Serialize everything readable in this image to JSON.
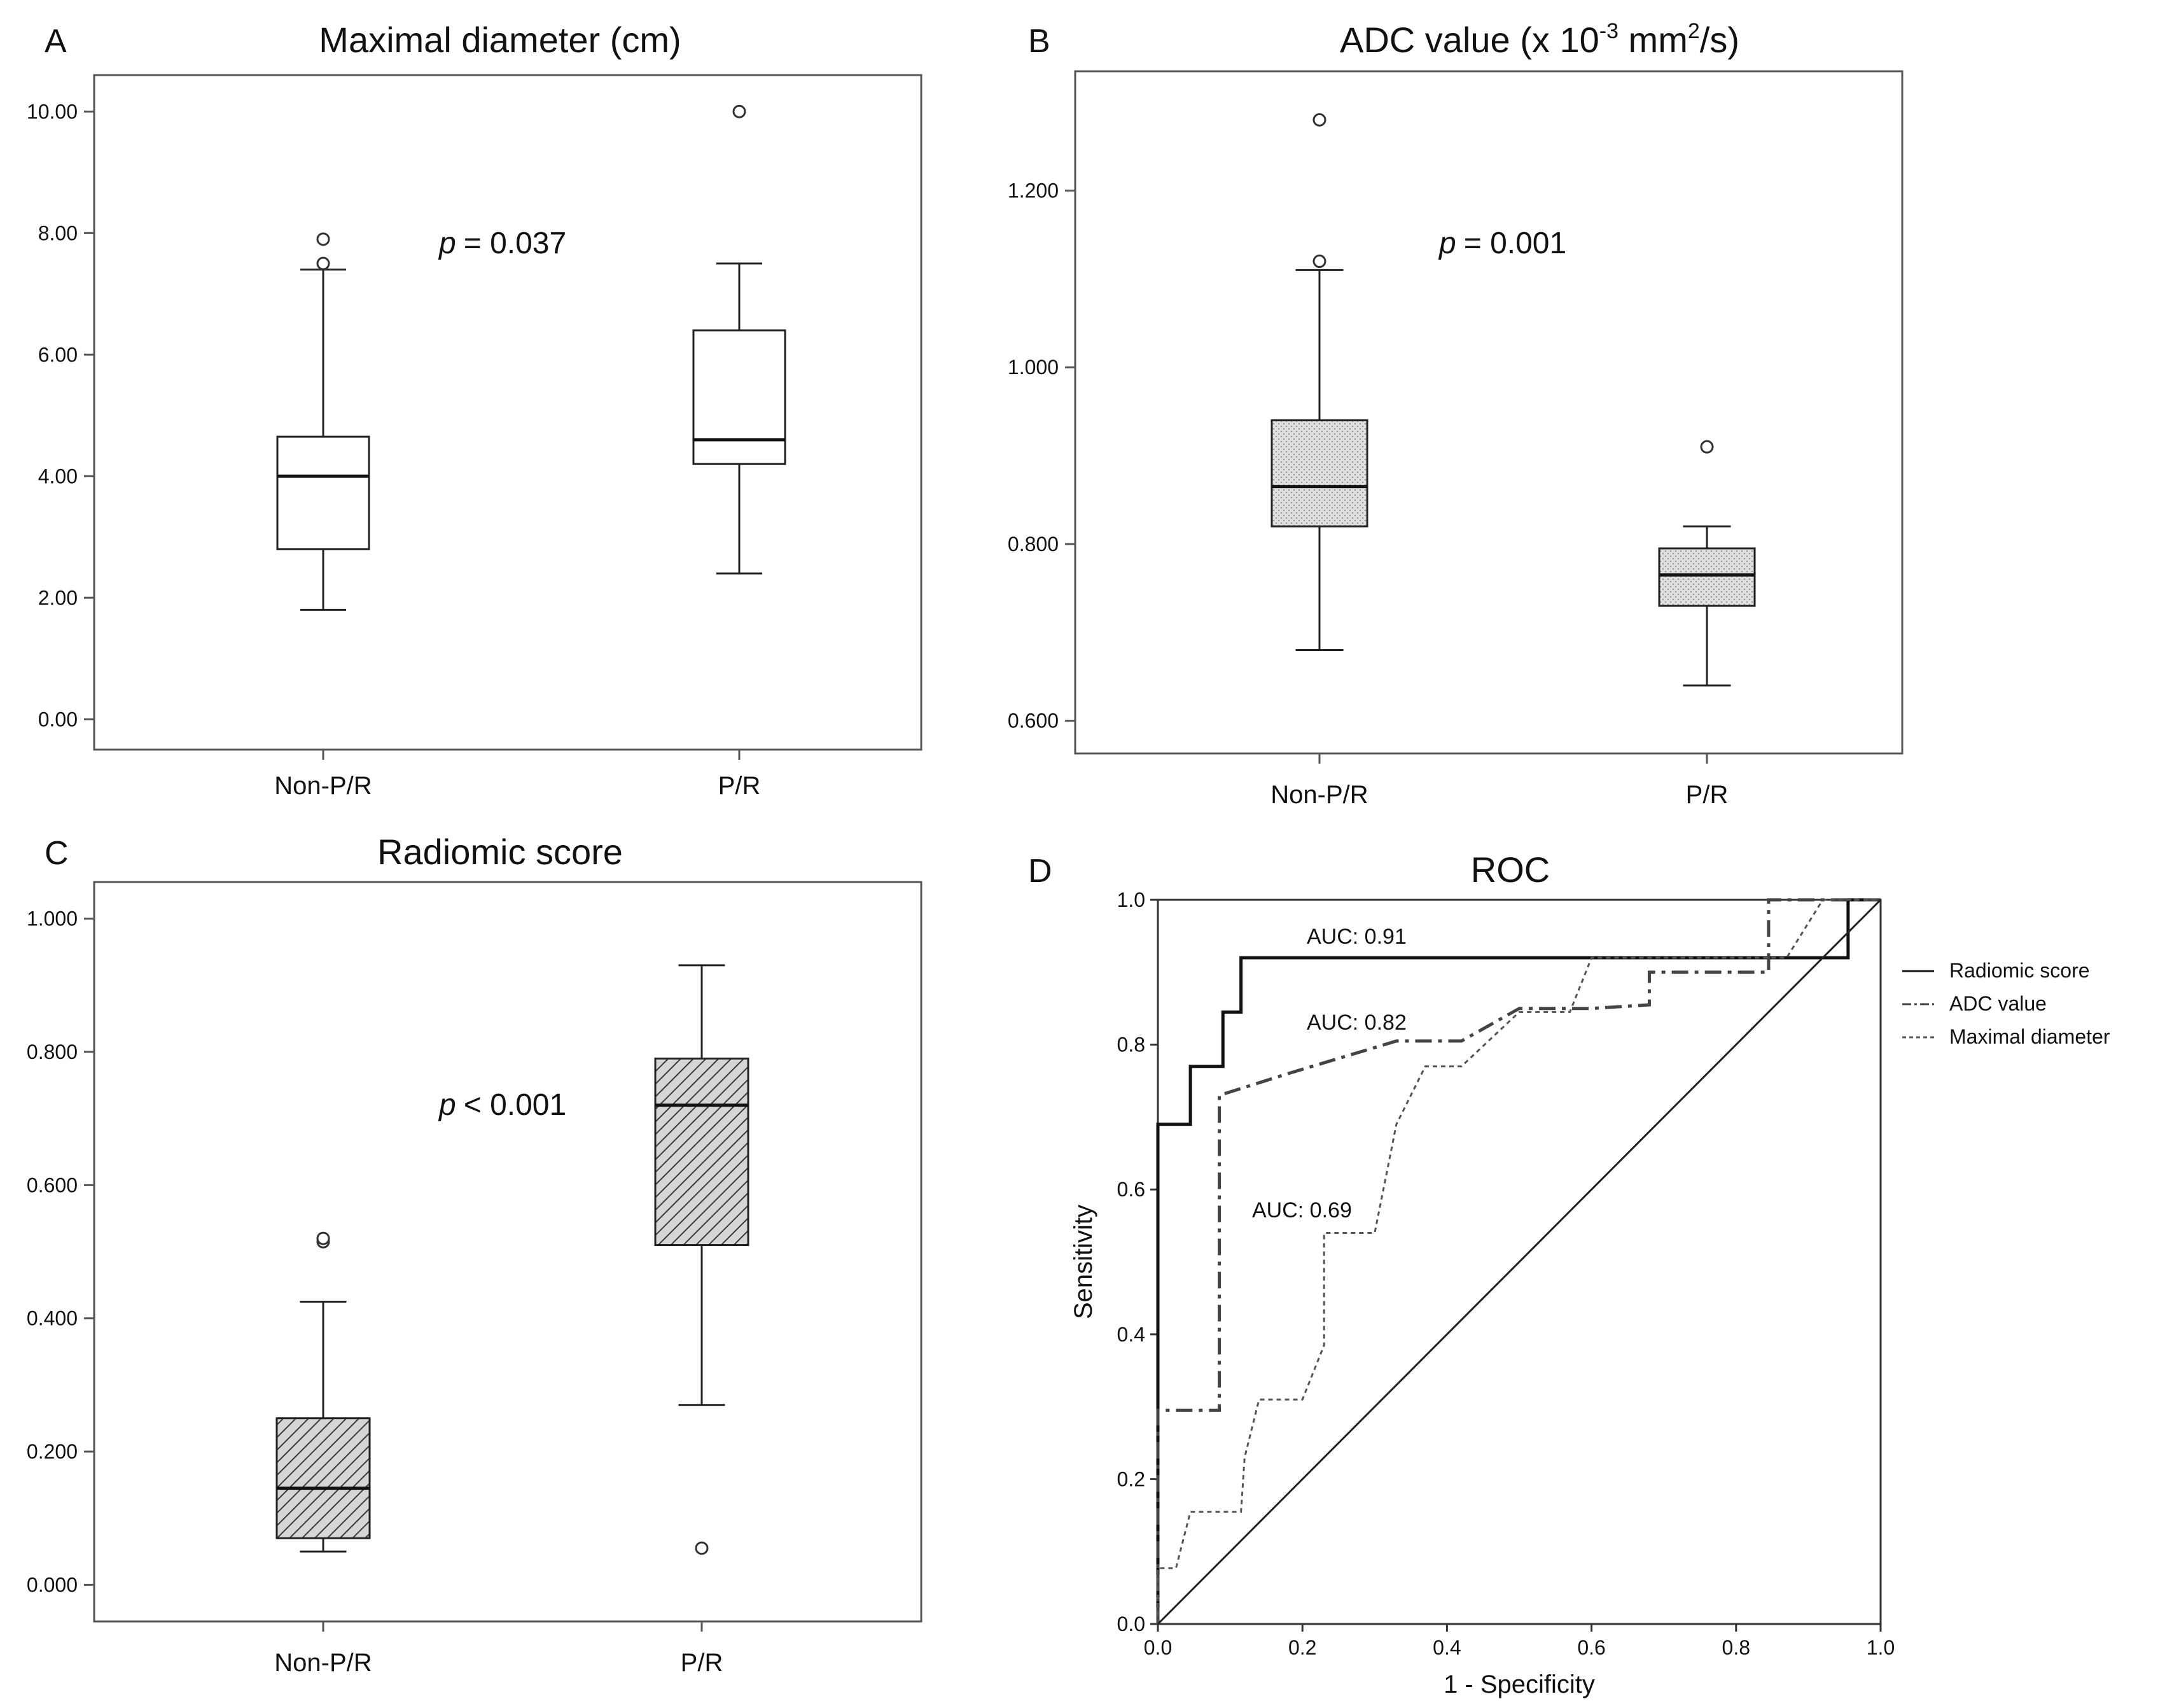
{
  "chart_data": [
    {
      "type": "box",
      "panel": "A",
      "title": "Maximal diameter (cm)",
      "categories": [
        "Non-P/R",
        "P/R"
      ],
      "ylim": [
        -0.5,
        10.6
      ],
      "yticks": [
        0,
        2,
        4,
        6,
        8,
        10
      ],
      "tick_labels": [
        "0.00",
        "2.00",
        "4.00",
        "6.00",
        "8.00",
        "10.00"
      ],
      "boxes": [
        {
          "category": "Non-P/R",
          "min": 1.8,
          "q1": 2.8,
          "median": 4.0,
          "q3": 4.65,
          "max": 7.4,
          "outliers": [
            7.5,
            7.9
          ]
        },
        {
          "category": "P/R",
          "min": 2.4,
          "q1": 4.2,
          "median": 4.6,
          "q3": 6.4,
          "max": 7.5,
          "outliers": [
            10.0
          ]
        }
      ],
      "fill": "none",
      "p_label": "p",
      "p_value": "= 0.037"
    },
    {
      "type": "box",
      "panel": "B",
      "title_main": "ADC value (x 10",
      "title_sup1": "-3",
      "title_mid": " mm",
      "title_sup2": "2",
      "title_end": "/s)",
      "categories": [
        "Non-P/R",
        "P/R"
      ],
      "ylim": [
        0.563,
        1.335
      ],
      "yticks": [
        0.6,
        0.8,
        1.0,
        1.2
      ],
      "tick_labels": [
        "0.600",
        "0.800",
        "1.000",
        "1.200"
      ],
      "boxes": [
        {
          "category": "Non-P/R",
          "min": 0.68,
          "q1": 0.82,
          "median": 0.865,
          "q3": 0.94,
          "max": 1.11,
          "outliers": [
            1.12,
            1.28
          ]
        },
        {
          "category": "P/R",
          "min": 0.64,
          "q1": 0.73,
          "median": 0.765,
          "q3": 0.795,
          "max": 0.82,
          "outliers": [
            0.91
          ]
        }
      ],
      "fill": "dotted-gray",
      "p_label": "p",
      "p_value": "= 0.001"
    },
    {
      "type": "box",
      "panel": "C",
      "title": "Radiomic  score",
      "categories": [
        "Non-P/R",
        "P/R"
      ],
      "ylim": [
        -0.055,
        1.055
      ],
      "yticks": [
        0,
        0.2,
        0.4,
        0.6,
        0.8,
        1.0
      ],
      "tick_labels": [
        "0.000",
        "0.200",
        "0.400",
        "0.600",
        "0.800",
        "1.000"
      ],
      "boxes": [
        {
          "category": "Non-P/R",
          "min": 0.05,
          "q1": 0.07,
          "median": 0.145,
          "q3": 0.25,
          "max": 0.425,
          "outliers": [
            0.515,
            0.52
          ]
        },
        {
          "category": "P/R",
          "min": 0.27,
          "q1": 0.51,
          "median": 0.72,
          "q3": 0.79,
          "max": 0.93,
          "outliers": [
            0.055
          ]
        }
      ],
      "fill": "hatched",
      "p_label": "p",
      "p_value": "< 0.001"
    },
    {
      "type": "line",
      "panel": "D",
      "title": "ROC",
      "xlabel": "1 - Specificity",
      "ylabel": "Sensitivity",
      "xlim": [
        0,
        1
      ],
      "ylim": [
        0,
        1
      ],
      "xticks": [
        "0.0",
        "0.2",
        "0.4",
        "0.6",
        "0.8",
        "1.0"
      ],
      "yticks": [
        "0.0",
        "0.2",
        "0.4",
        "0.6",
        "0.8",
        "1.0"
      ],
      "series": [
        {
          "name": "Radiomic score",
          "style": "solid",
          "auc_label": "AUC: 0.91",
          "points": [
            [
              0,
              0
            ],
            [
              0,
              0.69
            ],
            [
              0.045,
              0.69
            ],
            [
              0.045,
              0.77
            ],
            [
              0.09,
              0.77
            ],
            [
              0.09,
              0.845
            ],
            [
              0.115,
              0.845
            ],
            [
              0.115,
              0.92
            ],
            [
              0.86,
              0.92
            ],
            [
              0.86,
              0.92
            ],
            [
              0.955,
              0.92
            ],
            [
              0.955,
              1.0
            ],
            [
              1.0,
              1.0
            ]
          ]
        },
        {
          "name": "ADC value",
          "style": "dashdot",
          "auc_label": "AUC: 0.82",
          "points": [
            [
              0,
              0
            ],
            [
              0,
              0.295
            ],
            [
              0.085,
              0.295
            ],
            [
              0.085,
              0.73
            ],
            [
              0.18,
              0.76
            ],
            [
              0.33,
              0.805
            ],
            [
              0.42,
              0.805
            ],
            [
              0.5,
              0.85
            ],
            [
              0.6,
              0.85
            ],
            [
              0.68,
              0.855
            ],
            [
              0.68,
              0.9
            ],
            [
              0.845,
              0.9
            ],
            [
              0.845,
              1.0
            ],
            [
              1.0,
              1.0
            ]
          ]
        },
        {
          "name": "Maximal diameter",
          "style": "dashed",
          "auc_label": "AUC: 0.69",
          "points": [
            [
              0,
              0
            ],
            [
              0,
              0.077
            ],
            [
              0.025,
              0.077
            ],
            [
              0.045,
              0.155
            ],
            [
              0.115,
              0.155
            ],
            [
              0.12,
              0.23
            ],
            [
              0.14,
              0.31
            ],
            [
              0.2,
              0.31
            ],
            [
              0.23,
              0.385
            ],
            [
              0.23,
              0.54
            ],
            [
              0.3,
              0.54
            ],
            [
              0.33,
              0.69
            ],
            [
              0.37,
              0.77
            ],
            [
              0.42,
              0.77
            ],
            [
              0.5,
              0.845
            ],
            [
              0.57,
              0.845
            ],
            [
              0.6,
              0.92
            ],
            [
              0.87,
              0.92
            ],
            [
              0.92,
              1.0
            ],
            [
              1.0,
              1.0
            ]
          ]
        },
        {
          "name": "",
          "style": "reference",
          "points": [
            [
              0,
              0
            ],
            [
              1,
              1
            ]
          ]
        }
      ],
      "legend_placement": "right"
    }
  ],
  "panel_letters": [
    "A",
    "B",
    "C",
    "D"
  ]
}
